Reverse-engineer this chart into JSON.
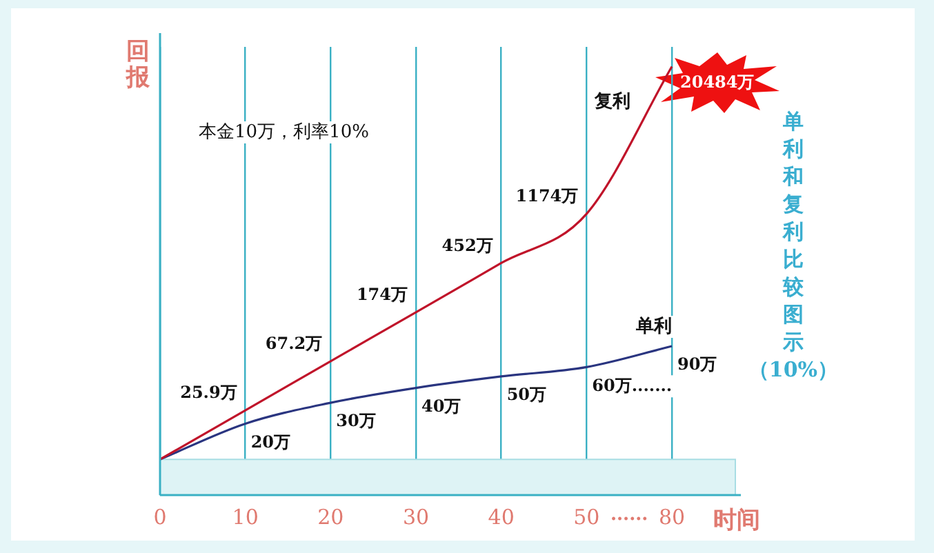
{
  "chart_data": {
    "type": "line",
    "title": "单利和复利比较图示（10%）",
    "xlabel": "时间",
    "ylabel": "回报",
    "categories": [
      "0",
      "10",
      "20",
      "30",
      "40",
      "50",
      "80"
    ],
    "series": [
      {
        "name": "复利",
        "color": "#c0142a",
        "values": [
          10,
          25.9,
          67.2,
          174,
          452,
          1174,
          20484
        ],
        "value_labels": [
          null,
          "25.9万",
          "67.2万",
          "174万",
          "452万",
          "1174万",
          "20484万"
        ]
      },
      {
        "name": "单利",
        "color": "#2a3580",
        "values": [
          10,
          20,
          30,
          40,
          50,
          60,
          90
        ],
        "value_labels": [
          null,
          "20万",
          "30万",
          "40万",
          "50万",
          "60万.......",
          "90万"
        ]
      }
    ],
    "log": true,
    "ylim": [
      5,
      30000
    ],
    "tick_labels": "x",
    "grid": "x",
    "legend": false,
    "marker": "none",
    "line_style": "solid",
    "bands": [
      {
        "axis": "y",
        "from": 5,
        "to": 10,
        "color": "#def3f5"
      }
    ],
    "annotations": [
      "本金10万，利率10%",
      "······"
    ]
  }
}
